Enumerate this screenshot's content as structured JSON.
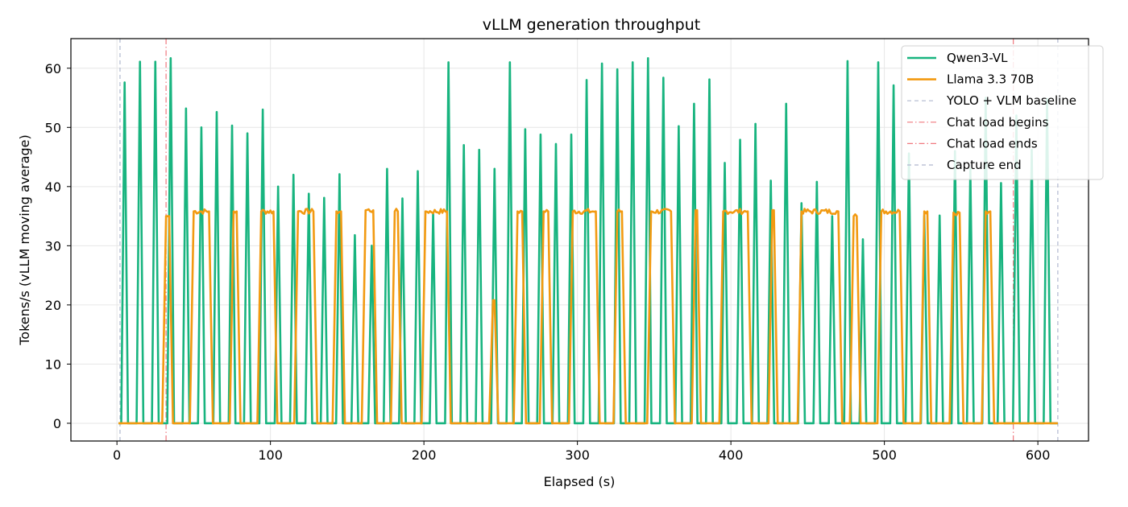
{
  "chart_data": {
    "type": "line",
    "title": "vLLM generation throughput",
    "xlabel": "Elapsed (s)",
    "ylabel": "Tokens/s (vLLM moving average)",
    "xlim": [
      -30,
      633
    ],
    "ylim": [
      -3,
      65
    ],
    "x_ticks": [
      0,
      100,
      200,
      300,
      400,
      500,
      600
    ],
    "y_ticks": [
      0,
      10,
      20,
      30,
      40,
      50,
      60
    ],
    "grid": true,
    "legend_position": "top-right",
    "series": [
      {
        "name": "Qwen3-VL",
        "color": "#18b47f",
        "bursts": [
          [
            5,
            57.6
          ],
          [
            15,
            61.1
          ],
          [
            25,
            61.1
          ],
          [
            35,
            61.7
          ],
          [
            45,
            53.2
          ],
          [
            55,
            50.0
          ],
          [
            65,
            52.6
          ],
          [
            75,
            50.3
          ],
          [
            85,
            49.0
          ],
          [
            95,
            53.0
          ],
          [
            105,
            40.0
          ],
          [
            115,
            42.0
          ],
          [
            125,
            38.8
          ],
          [
            135,
            38.1
          ],
          [
            145,
            42.1
          ],
          [
            155,
            31.8
          ],
          [
            166,
            30.0
          ],
          [
            176,
            43.0
          ],
          [
            186,
            38.0
          ],
          [
            196,
            42.6
          ],
          [
            206,
            35.6
          ],
          [
            216,
            61.0
          ],
          [
            226,
            47.0
          ],
          [
            236,
            46.2
          ],
          [
            246,
            43.0
          ],
          [
            256,
            61.0
          ],
          [
            266,
            49.7
          ],
          [
            276,
            48.8
          ],
          [
            286,
            47.2
          ],
          [
            296,
            48.8
          ],
          [
            306,
            58.0
          ],
          [
            316,
            60.8
          ],
          [
            326,
            59.8
          ],
          [
            336,
            61.0
          ],
          [
            346,
            61.7
          ],
          [
            356,
            58.4
          ],
          [
            366,
            50.2
          ],
          [
            376,
            54.0
          ],
          [
            386,
            58.1
          ],
          [
            396,
            44.0
          ],
          [
            406,
            47.9
          ],
          [
            416,
            50.6
          ],
          [
            426,
            41.0
          ],
          [
            436,
            54.0
          ],
          [
            446,
            37.2
          ],
          [
            456,
            40.8
          ],
          [
            466,
            35.0
          ],
          [
            476,
            61.2
          ],
          [
            486,
            31.1
          ],
          [
            496,
            61.0
          ],
          [
            506,
            57.1
          ],
          [
            516,
            45.6
          ],
          [
            526,
            35.1
          ],
          [
            536,
            35.1
          ],
          [
            546,
            46.0
          ],
          [
            556,
            43.0
          ],
          [
            566,
            55.0
          ],
          [
            576,
            40.6
          ],
          [
            586,
            52.0
          ],
          [
            596,
            46.2
          ],
          [
            606,
            54.8
          ]
        ]
      },
      {
        "name": "Llama 3.3 70B",
        "color": "#f29a11",
        "plateaus": [
          [
            32,
            34,
            35.0
          ],
          [
            50,
            60,
            35.8
          ],
          [
            76,
            78,
            35.8
          ],
          [
            94,
            102,
            35.8
          ],
          [
            118,
            128,
            35.8
          ],
          [
            143,
            146,
            35.8
          ],
          [
            162,
            167,
            36.0
          ],
          [
            181,
            183,
            35.8
          ],
          [
            201,
            215,
            35.8
          ],
          [
            245,
            246,
            20.8
          ],
          [
            261,
            264,
            35.8
          ],
          [
            278,
            281,
            35.8
          ],
          [
            297,
            312,
            35.8
          ],
          [
            326,
            329,
            35.8
          ],
          [
            348,
            361,
            35.8
          ],
          [
            377,
            378,
            36.0
          ],
          [
            395,
            411,
            35.8
          ],
          [
            427,
            428,
            36.0
          ],
          [
            446,
            470,
            35.8
          ],
          [
            480,
            482,
            35.0
          ],
          [
            498,
            510,
            35.8
          ],
          [
            526,
            528,
            35.8
          ],
          [
            545,
            549,
            35.6
          ],
          [
            566,
            569,
            35.8
          ]
        ],
        "x_end": 613
      },
      {
        "name": "YOLO + VLM baseline",
        "type": "vline",
        "x": 2,
        "color": "#b0b8cf"
      },
      {
        "name": "Chat load begins",
        "type": "vline",
        "x": 32,
        "color": "#f0787f"
      },
      {
        "name": "Chat load ends",
        "type": "vline",
        "x": 584,
        "color": "#f0787f"
      },
      {
        "name": "Capture end",
        "type": "vline",
        "x": 613,
        "color": "#b0b8cf"
      }
    ]
  }
}
